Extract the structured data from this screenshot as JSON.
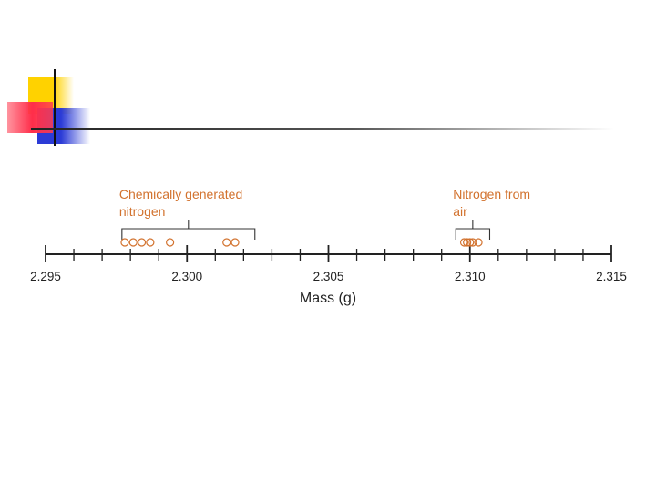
{
  "chart_data": {
    "type": "scatter",
    "xlabel": "Mass (g)",
    "xlim": [
      2.295,
      2.315
    ],
    "major_ticks": [
      2.295,
      2.3,
      2.305,
      2.31,
      2.315
    ],
    "tick_labels": [
      "2.295",
      "2.300",
      "2.305",
      "2.310",
      "2.315"
    ],
    "minor_tick_step": 0.001,
    "series": [
      {
        "label_lines": [
          "Chemically generated",
          "nitrogen"
        ],
        "values": [
          2.2978,
          2.2981,
          2.2984,
          2.2987,
          2.2994,
          2.3014,
          2.3017
        ],
        "bracket": [
          2.2977,
          2.3024
        ],
        "color": "#d2722e"
      },
      {
        "label_lines": [
          "Nitrogen from",
          "air"
        ],
        "values": [
          2.3098,
          2.3099,
          2.31,
          2.3101,
          2.3103
        ],
        "bracket": [
          2.3095,
          2.3107
        ],
        "color": "#d2722e"
      }
    ],
    "axis_color": "#222222"
  }
}
